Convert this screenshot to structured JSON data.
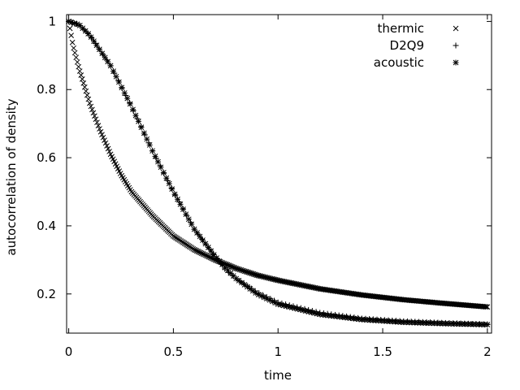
{
  "chart_data": {
    "type": "scatter",
    "title": "",
    "xlabel": "time",
    "ylabel": "autocorrelation of density",
    "xlim": [
      -0.01,
      2.02
    ],
    "ylim": [
      0.085,
      1.02
    ],
    "xticks": [
      0,
      0.5,
      1,
      1.5,
      2
    ],
    "xtick_labels": [
      "0",
      "0.5",
      "1",
      "1.5",
      "2"
    ],
    "yticks": [
      0.2,
      0.4,
      0.6,
      0.8,
      1
    ],
    "ytick_labels": [
      "0.2",
      "0.4",
      "0.6",
      "0.8",
      "1"
    ],
    "grid": false,
    "legend_position": "top-right",
    "series": [
      {
        "name": "thermic",
        "marker": "x",
        "x": [
          0,
          0.02,
          0.05,
          0.08,
          0.1,
          0.15,
          0.2,
          0.25,
          0.3,
          0.4,
          0.5,
          0.6,
          0.7,
          0.8,
          0.9,
          1.0,
          1.2,
          1.4,
          1.6,
          1.8,
          2.0
        ],
        "y": [
          1.0,
          0.93,
          0.86,
          0.8,
          0.76,
          0.68,
          0.61,
          0.55,
          0.5,
          0.43,
          0.37,
          0.33,
          0.3,
          0.275,
          0.255,
          0.24,
          0.215,
          0.197,
          0.183,
          0.172,
          0.162
        ]
      },
      {
        "name": "D2Q9",
        "marker": "+",
        "x": [
          0,
          0.05,
          0.1,
          0.2,
          0.3,
          0.4,
          0.5,
          0.6,
          0.7,
          0.75,
          0.8,
          0.85,
          0.9,
          1.0,
          1.2,
          1.4,
          1.6,
          1.8,
          2.0
        ],
        "y": [
          1.0,
          0.99,
          0.96,
          0.87,
          0.75,
          0.62,
          0.5,
          0.39,
          0.31,
          0.27,
          0.245,
          0.225,
          0.205,
          0.175,
          0.145,
          0.128,
          0.12,
          0.115,
          0.111
        ]
      },
      {
        "name": "acoustic",
        "marker": "*",
        "x": [
          0,
          0.05,
          0.1,
          0.2,
          0.3,
          0.4,
          0.5,
          0.6,
          0.7,
          0.75,
          0.8,
          0.9,
          1.0,
          1.2,
          1.4,
          1.6,
          1.8,
          2.0
        ],
        "y": [
          1.0,
          0.99,
          0.96,
          0.87,
          0.75,
          0.62,
          0.5,
          0.39,
          0.31,
          0.275,
          0.245,
          0.2,
          0.17,
          0.14,
          0.125,
          0.117,
          0.113,
          0.11
        ]
      }
    ]
  }
}
